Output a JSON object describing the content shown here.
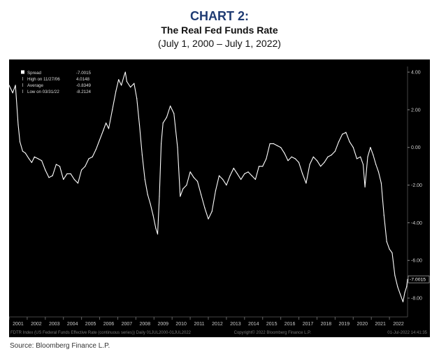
{
  "heading": {
    "number": "CHART 2:",
    "title": "The Real Fed Funds Rate",
    "subtitle": "(July 1, 2000 – July 1, 2022)"
  },
  "source": "Source: Bloomberg Finance L.P.",
  "footer_left": "FDTR Index (US Federal Funds Effective Rate (continuous series))   Daily 01JUL2000-01JUL2022",
  "footer_right_copyright": "Copyright© 2022 Bloomberg Finance L.P.",
  "footer_right_timestamp": "01-Jul-2022 14:41:35",
  "colors": {
    "background": "#000000",
    "line": "#ffffff",
    "heading": "#1f3b73"
  },
  "chart_data": {
    "type": "line",
    "title": "The Real Fed Funds Rate",
    "subtitle": "(July 1, 2000 – July 1, 2022)",
    "xlabel": "",
    "ylabel": "",
    "x_range": [
      2000.5,
      2022.5
    ],
    "ylim": [
      -9.0,
      4.3
    ],
    "y_ticks": [
      4.0,
      2.0,
      0.0,
      -2.0,
      -4.0,
      -6.0,
      -8.0
    ],
    "y_tick_labels": [
      "4.00",
      "2.00",
      "0.00",
      "-2.00",
      "-4.00",
      "-6.00",
      "-8.00"
    ],
    "x_ticks": [
      2001,
      2002,
      2003,
      2004,
      2005,
      2006,
      2007,
      2008,
      2009,
      2010,
      2011,
      2012,
      2013,
      2014,
      2015,
      2016,
      2017,
      2018,
      2019,
      2020,
      2021,
      2022
    ],
    "x_tick_labels": [
      "2001",
      "2002",
      "2003",
      "2004",
      "2005",
      "2006",
      "2007",
      "2008",
      "2009",
      "2010",
      "2011",
      "2012",
      "2013",
      "2014",
      "2015",
      "2016",
      "2017",
      "2018",
      "2019",
      "2020",
      "2021",
      "2022"
    ],
    "grid": false,
    "legend_position": "top-left",
    "legend": [
      {
        "label": "Spread",
        "value": "-7.0015"
      },
      {
        "label": "High on 11/27/06",
        "value": "4.0148"
      },
      {
        "label": "Average",
        "value": "-0.8349"
      },
      {
        "label": "Low on 03/31/22",
        "value": "-8.2124"
      }
    ],
    "last_value_label": "-7.0015",
    "last_value": -7.0015,
    "series": [
      {
        "x": [
          2000.5,
          2000.7,
          2000.85,
          2001.0,
          2001.1,
          2001.25,
          2001.4,
          2001.6,
          2001.75,
          2001.9,
          2002.1,
          2002.3,
          2002.5,
          2002.7,
          2002.9,
          2003.1,
          2003.3,
          2003.5,
          2003.7,
          2003.9,
          2004.1,
          2004.3,
          2004.5,
          2004.7,
          2004.9,
          2005.1,
          2005.3,
          2005.5,
          2005.7,
          2005.85,
          2006.0,
          2006.2,
          2006.4,
          2006.55,
          2006.7,
          2006.85,
          2006.92,
          2007.0,
          2007.2,
          2007.4,
          2007.55,
          2007.7,
          2007.85,
          2008.0,
          2008.15,
          2008.3,
          2008.45,
          2008.6,
          2008.7,
          2008.8,
          2008.9,
          2009.0,
          2009.2,
          2009.4,
          2009.6,
          2009.8,
          2009.95,
          2010.1,
          2010.3,
          2010.5,
          2010.7,
          2010.9,
          2011.1,
          2011.3,
          2011.5,
          2011.7,
          2011.9,
          2012.1,
          2012.3,
          2012.5,
          2012.7,
          2012.9,
          2013.1,
          2013.3,
          2013.5,
          2013.7,
          2013.9,
          2014.1,
          2014.3,
          2014.5,
          2014.7,
          2014.9,
          2015.1,
          2015.3,
          2015.5,
          2015.7,
          2015.9,
          2016.1,
          2016.3,
          2016.5,
          2016.7,
          2016.9,
          2017.1,
          2017.3,
          2017.5,
          2017.7,
          2017.9,
          2018.1,
          2018.3,
          2018.5,
          2018.7,
          2018.9,
          2019.1,
          2019.3,
          2019.5,
          2019.7,
          2019.9,
          2020.05,
          2020.15,
          2020.3,
          2020.45,
          2020.6,
          2020.75,
          2020.9,
          2021.05,
          2021.2,
          2021.35,
          2021.5,
          2021.65,
          2021.8,
          2021.95,
          2022.1,
          2022.25,
          2022.35,
          2022.45,
          2022.5
        ],
        "y": [
          3.3,
          2.9,
          3.3,
          1.2,
          0.3,
          -0.2,
          -0.3,
          -0.6,
          -0.8,
          -0.5,
          -0.6,
          -0.7,
          -1.2,
          -1.6,
          -1.5,
          -0.9,
          -1.0,
          -1.7,
          -1.4,
          -1.4,
          -1.7,
          -1.9,
          -1.2,
          -1.0,
          -0.6,
          -0.5,
          -0.1,
          0.4,
          0.9,
          1.3,
          1.0,
          2.0,
          3.0,
          3.6,
          3.3,
          3.8,
          4.0,
          3.5,
          3.2,
          3.4,
          2.6,
          1.2,
          -0.4,
          -1.7,
          -2.5,
          -3.0,
          -3.6,
          -4.3,
          -4.6,
          -2.6,
          0.2,
          1.3,
          1.6,
          2.2,
          1.8,
          0.0,
          -2.6,
          -2.2,
          -2.0,
          -1.3,
          -1.6,
          -1.8,
          -2.5,
          -3.2,
          -3.8,
          -3.4,
          -2.3,
          -1.5,
          -1.7,
          -2.0,
          -1.5,
          -1.1,
          -1.4,
          -1.7,
          -1.4,
          -1.3,
          -1.5,
          -1.7,
          -1.0,
          -1.0,
          -0.6,
          0.2,
          0.2,
          0.1,
          0.0,
          -0.3,
          -0.7,
          -0.5,
          -0.6,
          -0.8,
          -1.4,
          -1.9,
          -0.9,
          -0.5,
          -0.7,
          -1.0,
          -0.8,
          -0.5,
          -0.4,
          -0.2,
          0.3,
          0.7,
          0.8,
          0.3,
          0.0,
          -0.6,
          -0.5,
          -0.9,
          -2.1,
          -0.5,
          0.0,
          -0.4,
          -0.9,
          -1.3,
          -1.9,
          -3.6,
          -5.0,
          -5.4,
          -5.6,
          -6.8,
          -7.4,
          -7.8,
          -8.2,
          -7.7,
          -7.4,
          -7.0
        ]
      }
    ]
  }
}
